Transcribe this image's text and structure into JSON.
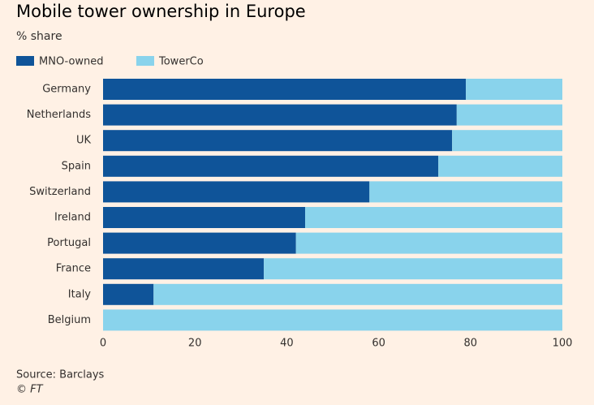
{
  "chart_data": {
    "type": "stacked-barh",
    "title": "Mobile tower ownership in Europe",
    "subtitle": "% share",
    "categories": [
      "Germany",
      "Netherlands",
      "UK",
      "Spain",
      "Switzerland",
      "Ireland",
      "Portugal",
      "France",
      "Italy",
      "Belgium"
    ],
    "series": [
      {
        "name": "MNO-owned",
        "color": "#0f5499",
        "values": [
          79,
          77,
          76,
          73,
          58,
          44,
          42,
          35,
          11,
          0
        ]
      },
      {
        "name": "TowerCo",
        "color": "#89d3ec",
        "values": [
          21,
          23,
          24,
          27,
          42,
          56,
          58,
          65,
          89,
          100
        ]
      }
    ],
    "xlim": [
      0,
      100
    ],
    "xticks": [
      0,
      20,
      40,
      60,
      80,
      100
    ],
    "grid": false,
    "source": "Source: Barclays",
    "credit": "© FT"
  }
}
